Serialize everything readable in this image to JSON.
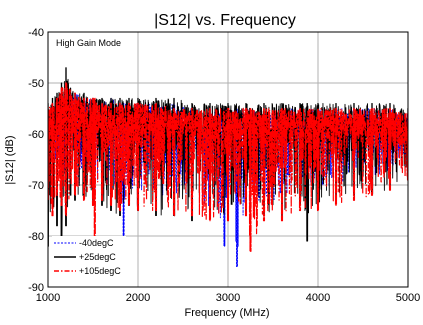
{
  "chart_data": {
    "type": "line",
    "title": "|S12| vs. Frequency",
    "xlabel": "Frequency (MHz)",
    "ylabel": "|S12| (dB)",
    "annotation": "High Gain Mode",
    "xlim": [
      1000,
      5000
    ],
    "ylim": [
      -90,
      -40
    ],
    "xticks": [
      1000,
      2000,
      3000,
      4000,
      5000
    ],
    "yticks": [
      -90,
      -80,
      -70,
      -60,
      -50,
      -40
    ],
    "grid": true,
    "legend_position": "bottom-left",
    "series": [
      {
        "name": "-40degC",
        "color": "#0000ff",
        "dash": "dotted",
        "x": [
          1000,
          1050,
          1100,
          1150,
          1200,
          1300,
          1400,
          1500,
          1600,
          1700,
          1800,
          1840,
          1900,
          2000,
          2200,
          2400,
          2600,
          2800,
          2960,
          3000,
          3100,
          3200,
          3400,
          3600,
          3800,
          4000,
          4200,
          4400,
          4600,
          4800,
          5000
        ],
        "upper": [
          -56,
          -54,
          -53,
          -52,
          -51,
          -52,
          -53,
          -53,
          -54,
          -53,
          -54,
          -54,
          -54,
          -54,
          -54,
          -54,
          -55,
          -55,
          -55,
          -55,
          -55,
          -55,
          -56,
          -55,
          -55,
          -55,
          -55,
          -55,
          -55,
          -55,
          -56
        ],
        "lower": [
          -67,
          -69,
          -72,
          -70,
          -68,
          -70,
          -71,
          -72,
          -71,
          -72,
          -72,
          -82,
          -72,
          -72,
          -73,
          -73,
          -74,
          -75,
          -82,
          -73,
          -86,
          -73,
          -74,
          -73,
          -72,
          -71,
          -70,
          -70,
          -69,
          -68,
          -66
        ],
        "center": [
          -60,
          -59,
          -58,
          -58,
          -57,
          -58,
          -58,
          -59,
          -59,
          -59,
          -59,
          -59,
          -59,
          -59,
          -59,
          -60,
          -60,
          -60,
          -60,
          -60,
          -60,
          -60,
          -60,
          -60,
          -60,
          -60,
          -60,
          -60,
          -60,
          -60,
          -60
        ]
      },
      {
        "name": "+25degC",
        "color": "#000000",
        "dash": "solid",
        "x": [
          1000,
          1050,
          1100,
          1150,
          1200,
          1250,
          1300,
          1400,
          1500,
          1600,
          1700,
          1800,
          1900,
          2000,
          2200,
          2400,
          2600,
          2800,
          3000,
          3200,
          3400,
          3600,
          3800,
          3880,
          4000,
          4200,
          4400,
          4600,
          4800,
          5000
        ],
        "upper": [
          -54,
          -53,
          -52,
          -50,
          -47,
          -51,
          -52,
          -52,
          -53,
          -53,
          -53,
          -53,
          -53,
          -53,
          -53,
          -53,
          -54,
          -54,
          -54,
          -54,
          -54,
          -54,
          -54,
          -54,
          -54,
          -54,
          -54,
          -54,
          -54,
          -55
        ],
        "lower": [
          -82,
          -74,
          -78,
          -81,
          -78,
          -72,
          -73,
          -72,
          -73,
          -74,
          -75,
          -76,
          -74,
          -75,
          -76,
          -76,
          -77,
          -76,
          -76,
          -75,
          -76,
          -76,
          -74,
          -81,
          -74,
          -73,
          -72,
          -72,
          -71,
          -69
        ],
        "center": [
          -60,
          -59,
          -58,
          -57,
          -56,
          -57,
          -58,
          -58,
          -58,
          -58,
          -58,
          -58,
          -58,
          -58,
          -58,
          -59,
          -59,
          -59,
          -59,
          -59,
          -59,
          -59,
          -59,
          -59,
          -59,
          -59,
          -59,
          -59,
          -59,
          -59
        ]
      },
      {
        "name": "+105degC",
        "color": "#ff0000",
        "dash": "dashdot",
        "x": [
          1000,
          1050,
          1100,
          1150,
          1200,
          1300,
          1400,
          1500,
          1520,
          1600,
          1700,
          1800,
          1900,
          2000,
          2200,
          2400,
          2600,
          2800,
          3000,
          3200,
          3250,
          3400,
          3600,
          3800,
          4000,
          4200,
          4400,
          4600,
          4800,
          5000
        ],
        "upper": [
          -55,
          -54,
          -53,
          -51,
          -50,
          -52,
          -53,
          -53,
          -53,
          -54,
          -54,
          -54,
          -54,
          -54,
          -54,
          -55,
          -55,
          -55,
          -55,
          -55,
          -55,
          -55,
          -55,
          -55,
          -55,
          -55,
          -55,
          -55,
          -55,
          -56
        ],
        "lower": [
          -73,
          -76,
          -72,
          -74,
          -76,
          -72,
          -73,
          -74,
          -82,
          -73,
          -74,
          -75,
          -74,
          -75,
          -75,
          -76,
          -76,
          -77,
          -77,
          -76,
          -83,
          -77,
          -77,
          -75,
          -75,
          -74,
          -73,
          -72,
          -71,
          -69
        ],
        "center": [
          -60,
          -59,
          -58,
          -57,
          -56,
          -57,
          -58,
          -58,
          -58,
          -58,
          -59,
          -59,
          -59,
          -59,
          -59,
          -59,
          -59,
          -59,
          -59,
          -59,
          -59,
          -59,
          -59,
          -59,
          -59,
          -59,
          -59,
          -59,
          -59,
          -59
        ]
      }
    ]
  }
}
